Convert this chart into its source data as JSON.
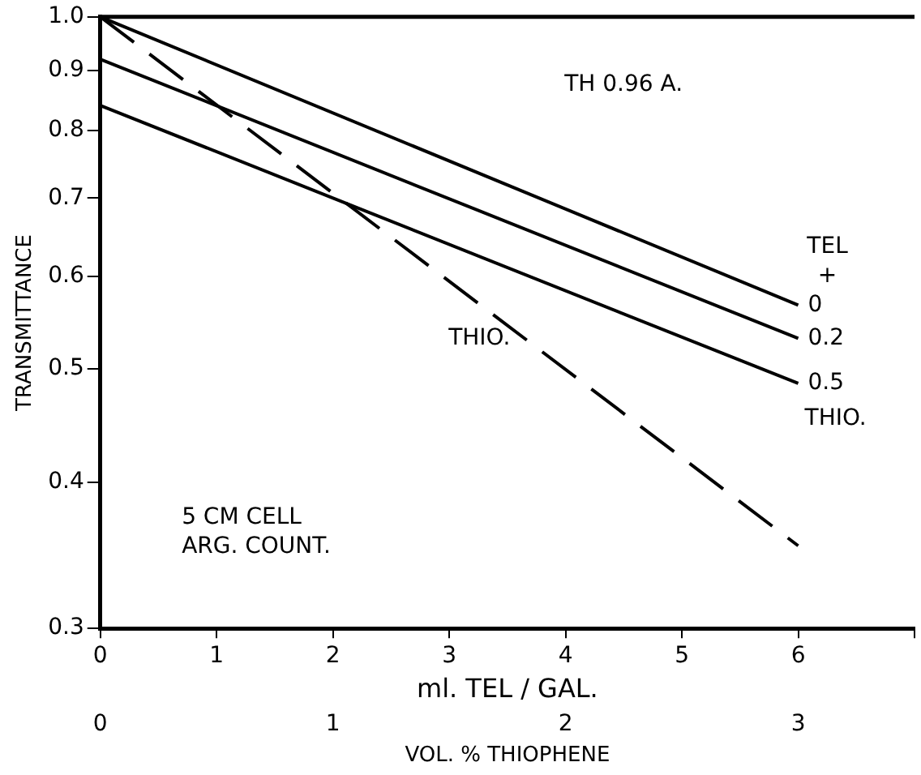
{
  "chart_data": {
    "type": "line",
    "xlabel": "ml. TEL / GAL.",
    "x2label": "VOL. % THIOPHENE",
    "ylabel": "TRANSMITTANCE",
    "legend_title": "TEL +",
    "annotations": [
      "TH 0.96 A.",
      "5 CM CELL",
      "ARG. COUNT.",
      "THIO."
    ],
    "log": "y",
    "grid": false,
    "legend": false,
    "marker": "none",
    "x": [
      0,
      6
    ],
    "xlim": [
      0,
      7
    ],
    "xticks": [
      0,
      1,
      2,
      3,
      4,
      5,
      6,
      {
        "value": 7,
        "label": null
      }
    ],
    "x2lim": [
      0,
      3.5
    ],
    "x2ticks": [
      0,
      1,
      2,
      3
    ],
    "ylim": [
      0.3,
      1.0
    ],
    "yticks": [
      0.3,
      0.4,
      0.5,
      0.6,
      0.7,
      0.8,
      0.9,
      {
        "value": 1.0,
        "label": "1.0"
      }
    ],
    "series": [
      {
        "name": "0",
        "color": "#000000",
        "values": [
          1.0,
          0.567
        ],
        "line_style": "solid"
      },
      {
        "name": "0.2",
        "color": "#000000",
        "values": [
          0.92,
          0.531
        ],
        "line_style": "solid"
      },
      {
        "name": "0.5",
        "color": "#000000",
        "values": [
          0.84,
          0.486
        ],
        "line_style": "solid"
      },
      {
        "name": "THIO.",
        "color": "#000000",
        "values": [
          1.0,
          0.353
        ],
        "line_style": "dashed"
      }
    ]
  }
}
